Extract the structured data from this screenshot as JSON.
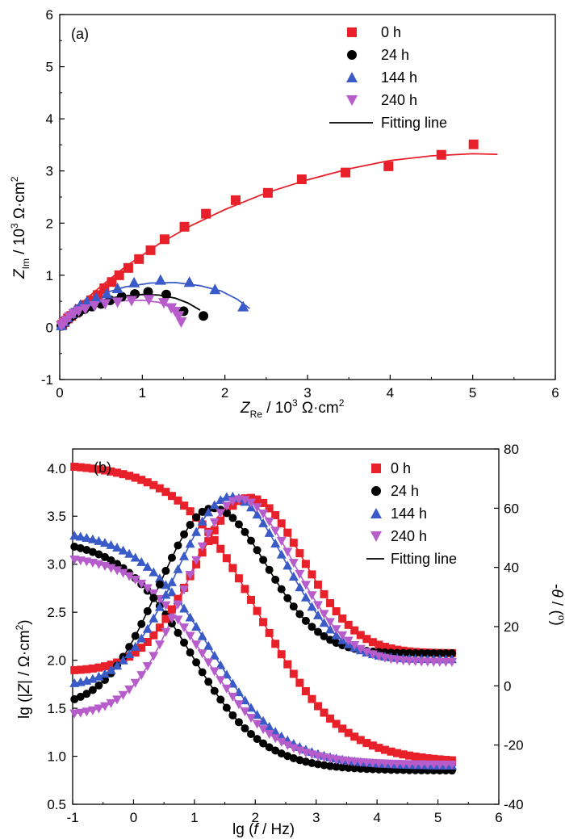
{
  "chart_data": [
    {
      "panel": "(a)",
      "type": "scatter",
      "xlabel": {
        "sym": "Z",
        "sub": "Re",
        "rest": " / 10",
        "sup": "3",
        "unit": " Ω·cm",
        "unitsup": "2"
      },
      "ylabel": {
        "sym": "Z",
        "sub": "Im",
        "rest": " / 10",
        "sup": "3",
        "unit": " Ω·cm",
        "unitsup": "2"
      },
      "xlim": [
        0,
        6
      ],
      "ylim": [
        -1,
        6
      ],
      "xticks": [
        "0",
        "1",
        "2",
        "3",
        "4",
        "5",
        "6"
      ],
      "yticks": [
        "-1",
        "0",
        "1",
        "2",
        "3",
        "4",
        "5",
        "6"
      ],
      "legend": [
        "0 h",
        "24 h",
        "144 h",
        "240 h",
        "Fitting line"
      ],
      "series": [
        {
          "name": "0 h",
          "marker": "square",
          "color": "#e8202a",
          "x": [
            0.03,
            0.06,
            0.1,
            0.14,
            0.19,
            0.25,
            0.31,
            0.38,
            0.46,
            0.54,
            0.63,
            0.72,
            0.83,
            0.96,
            1.1,
            1.27,
            1.51,
            1.77,
            2.13,
            2.52,
            2.93,
            3.46,
            3.98,
            4.62,
            5.01
          ],
          "y": [
            0.05,
            0.1,
            0.17,
            0.22,
            0.28,
            0.35,
            0.43,
            0.52,
            0.62,
            0.75,
            0.87,
            1.0,
            1.14,
            1.31,
            1.48,
            1.69,
            1.93,
            2.18,
            2.44,
            2.58,
            2.84,
            2.97,
            3.09,
            3.31,
            3.51
          ]
        },
        {
          "name": "24 h",
          "marker": "circle",
          "color": "#000000",
          "x": [
            0.02,
            0.05,
            0.08,
            0.12,
            0.17,
            0.23,
            0.3,
            0.39,
            0.5,
            0.61,
            0.75,
            0.91,
            1.07,
            1.29,
            1.5,
            1.74
          ],
          "y": [
            0.03,
            0.08,
            0.13,
            0.18,
            0.24,
            0.29,
            0.35,
            0.4,
            0.45,
            0.52,
            0.59,
            0.64,
            0.68,
            0.63,
            0.31,
            0.22
          ]
        },
        {
          "name": "144 h",
          "marker": "triangle-up",
          "color": "#3a5bc7",
          "x": [
            0.02,
            0.05,
            0.09,
            0.14,
            0.19,
            0.25,
            0.33,
            0.44,
            0.57,
            0.7,
            0.9,
            1.22,
            1.57,
            1.88,
            2.22
          ],
          "y": [
            0.04,
            0.11,
            0.19,
            0.27,
            0.35,
            0.43,
            0.5,
            0.57,
            0.65,
            0.75,
            0.86,
            0.91,
            0.87,
            0.73,
            0.4
          ]
        },
        {
          "name": "240 h",
          "marker": "triangle-down",
          "color": "#b65ccb",
          "x": [
            0.02,
            0.05,
            0.08,
            0.12,
            0.17,
            0.23,
            0.31,
            0.42,
            0.55,
            0.7,
            0.87,
            1.08,
            1.26,
            1.35,
            1.4,
            1.44,
            1.47
          ],
          "y": [
            0.03,
            0.08,
            0.13,
            0.2,
            0.26,
            0.31,
            0.35,
            0.41,
            0.45,
            0.48,
            0.51,
            0.53,
            0.47,
            0.37,
            0.3,
            0.22,
            0.1
          ]
        }
      ],
      "fits": [
        {
          "name": "0 h",
          "color": "#e8202a",
          "x": [
            0,
            0.05,
            0.15,
            0.3,
            0.5,
            0.8,
            1.2,
            1.6,
            2.0,
            2.5,
            3.0,
            3.5,
            4.0,
            4.5,
            5.0,
            5.3
          ],
          "y": [
            0,
            0.12,
            0.3,
            0.52,
            0.79,
            1.17,
            1.6,
            1.96,
            2.26,
            2.58,
            2.83,
            3.04,
            3.2,
            3.29,
            3.33,
            3.32
          ]
        },
        {
          "name": "24 h",
          "color": "#000000",
          "x": [
            0,
            0.05,
            0.15,
            0.3,
            0.5,
            0.75,
            1.0,
            1.2,
            1.4,
            1.55,
            1.7
          ],
          "y": [
            0,
            0.1,
            0.25,
            0.4,
            0.52,
            0.6,
            0.63,
            0.62,
            0.56,
            0.47,
            0.33
          ]
        },
        {
          "name": "144 h",
          "color": "#3a5bc7",
          "x": [
            0,
            0.05,
            0.15,
            0.3,
            0.5,
            0.8,
            1.1,
            1.4,
            1.7,
            1.95,
            2.15,
            2.3
          ],
          "y": [
            0,
            0.12,
            0.3,
            0.48,
            0.64,
            0.78,
            0.85,
            0.86,
            0.8,
            0.7,
            0.54,
            0.36
          ]
        },
        {
          "name": "240 h",
          "color": "#b65ccb",
          "x": [
            0,
            0.05,
            0.15,
            0.3,
            0.5,
            0.75,
            1.0,
            1.2,
            1.35,
            1.45
          ],
          "y": [
            0,
            0.09,
            0.22,
            0.35,
            0.45,
            0.51,
            0.52,
            0.48,
            0.38,
            0.24
          ]
        }
      ]
    },
    {
      "panel": "(b)",
      "type": "scatter",
      "xlabel": {
        "pre": "lg (",
        "sym": "f",
        "post": " / Hz)"
      },
      "ylabel": {
        "text": "lg (|",
        "sym": "Z",
        "text2": "| / Ω·cm",
        "sup": "2",
        "text3": ")"
      },
      "y2label": {
        "text": "-",
        "sym": "θ",
        "text2": " / (",
        "sup": "o",
        "text3": ")"
      },
      "xlim": [
        -1,
        6
      ],
      "ylim": [
        0.5,
        4.2
      ],
      "y2lim": [
        -40,
        80
      ],
      "xticks": [
        "-1",
        "0",
        "1",
        "2",
        "3",
        "4",
        "5",
        "6"
      ],
      "yticks": [
        "0.5",
        "1.0",
        "1.5",
        "2.0",
        "2.5",
        "3.0",
        "3.5",
        "4.0"
      ],
      "y2ticks": [
        "-40",
        "-20",
        "0",
        "20",
        "40",
        "60",
        "80"
      ],
      "legend": [
        "0 h",
        "24 h",
        "144 h",
        "240 h",
        "Fitting line"
      ],
      "impedance_series": [
        {
          "name": "0 h",
          "marker": "square",
          "color": "#e8202a",
          "x_start": -0.97,
          "x_step": 0.1,
          "y_hi": 4.05,
          "y_lo": 0.93,
          "center": 2.05,
          "width": 1.5,
          "count": 64
        },
        {
          "name": "24 h",
          "marker": "circle",
          "color": "#000000",
          "x_start": -0.97,
          "x_step": 0.1,
          "y_hi": 3.27,
          "y_lo": 0.85,
          "center": 0.95,
          "width": 1.3,
          "count": 64
        },
        {
          "name": "144 h",
          "marker": "triangle-up",
          "color": "#3a5bc7",
          "x_start": -0.97,
          "x_step": 0.1,
          "y_hi": 3.36,
          "y_lo": 0.9,
          "center": 1.25,
          "width": 1.35,
          "count": 64
        },
        {
          "name": "240 h",
          "marker": "triangle-down",
          "color": "#b65ccb",
          "x_start": -0.97,
          "x_step": 0.1,
          "y_hi": 3.1,
          "y_lo": 0.91,
          "center": 1.2,
          "width": 1.3,
          "count": 64
        }
      ],
      "phase_series": [
        {
          "name": "0 h",
          "marker": "square",
          "color": "#e8202a",
          "x_start": -0.97,
          "x_step": 0.1,
          "peak": 63.5,
          "peak_x": 1.9,
          "low_start": 5,
          "low_end": 11,
          "count": 64
        },
        {
          "name": "24 h",
          "marker": "circle",
          "color": "#000000",
          "x_start": -0.97,
          "x_step": 0.1,
          "peak": 60,
          "peak_x": 1.3,
          "low_start": -7,
          "low_end": 11,
          "count": 64
        },
        {
          "name": "144 h",
          "marker": "triangle-up",
          "color": "#3a5bc7",
          "x_start": -0.97,
          "x_step": 0.1,
          "peak": 64,
          "peak_x": 1.6,
          "low_start": 0,
          "low_end": 9,
          "count": 64
        },
        {
          "name": "240 h",
          "marker": "triangle-down",
          "color": "#b65ccb",
          "x_start": -0.97,
          "x_step": 0.1,
          "peak": 63,
          "peak_x": 1.75,
          "low_start": -10,
          "low_end": 8,
          "count": 64
        }
      ]
    }
  ]
}
